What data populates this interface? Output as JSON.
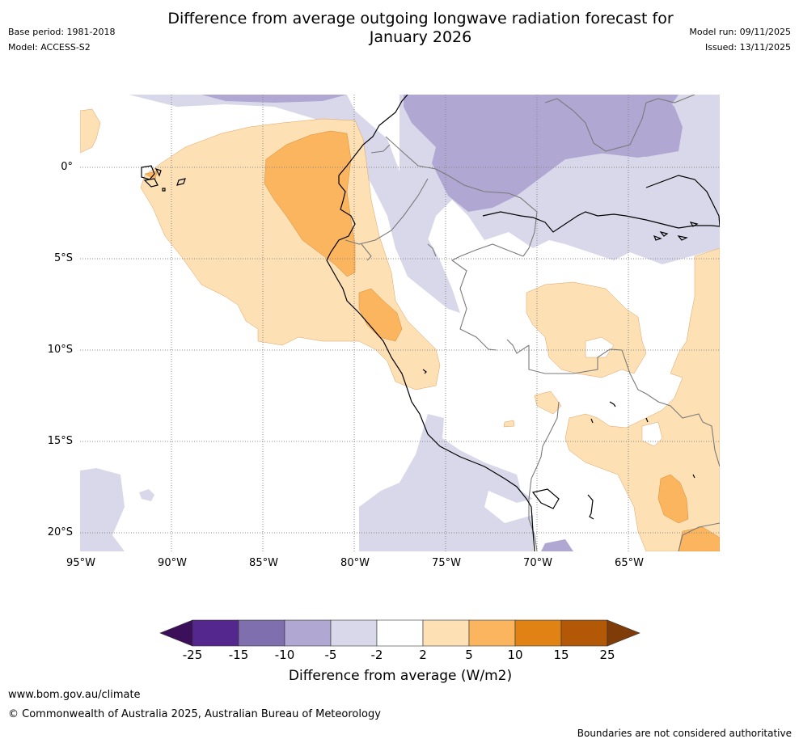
{
  "header": {
    "base_period": "Base period: 1981-2018",
    "model": "Model: ACCESS-S2",
    "title_line1": "Difference from average outgoing longwave radiation forecast for",
    "title_line2": "January 2026",
    "model_run": "Model run: 09/11/2025",
    "issued": "Issued: 13/11/2025"
  },
  "map": {
    "lat_labels": [
      "0°",
      "5°S",
      "10°S",
      "15°S",
      "20°S"
    ],
    "lon_labels": [
      "95°W",
      "90°W",
      "85°W",
      "80°W",
      "75°W",
      "70°W",
      "65°W"
    ]
  },
  "legend": {
    "ticks": [
      "-25",
      "-15",
      "-10",
      "-5",
      "-2",
      "2",
      "5",
      "10",
      "15",
      "25"
    ],
    "label": "Difference from average (W/m2)",
    "colors": [
      "#3b0f5a",
      "#54278f",
      "#7f6fae",
      "#b0a8d2",
      "#d8d8ea",
      "#ffffff",
      "#fde0b4",
      "#fbb55f",
      "#e08214",
      "#b35806",
      "#7f3b08"
    ]
  },
  "footer": {
    "url": "www.bom.gov.au/climate",
    "copyright": "© Commonwealth of Australia 2025, Australian Bureau of Meteorology",
    "disclaimer": "Boundaries are not considered authoritative"
  }
}
